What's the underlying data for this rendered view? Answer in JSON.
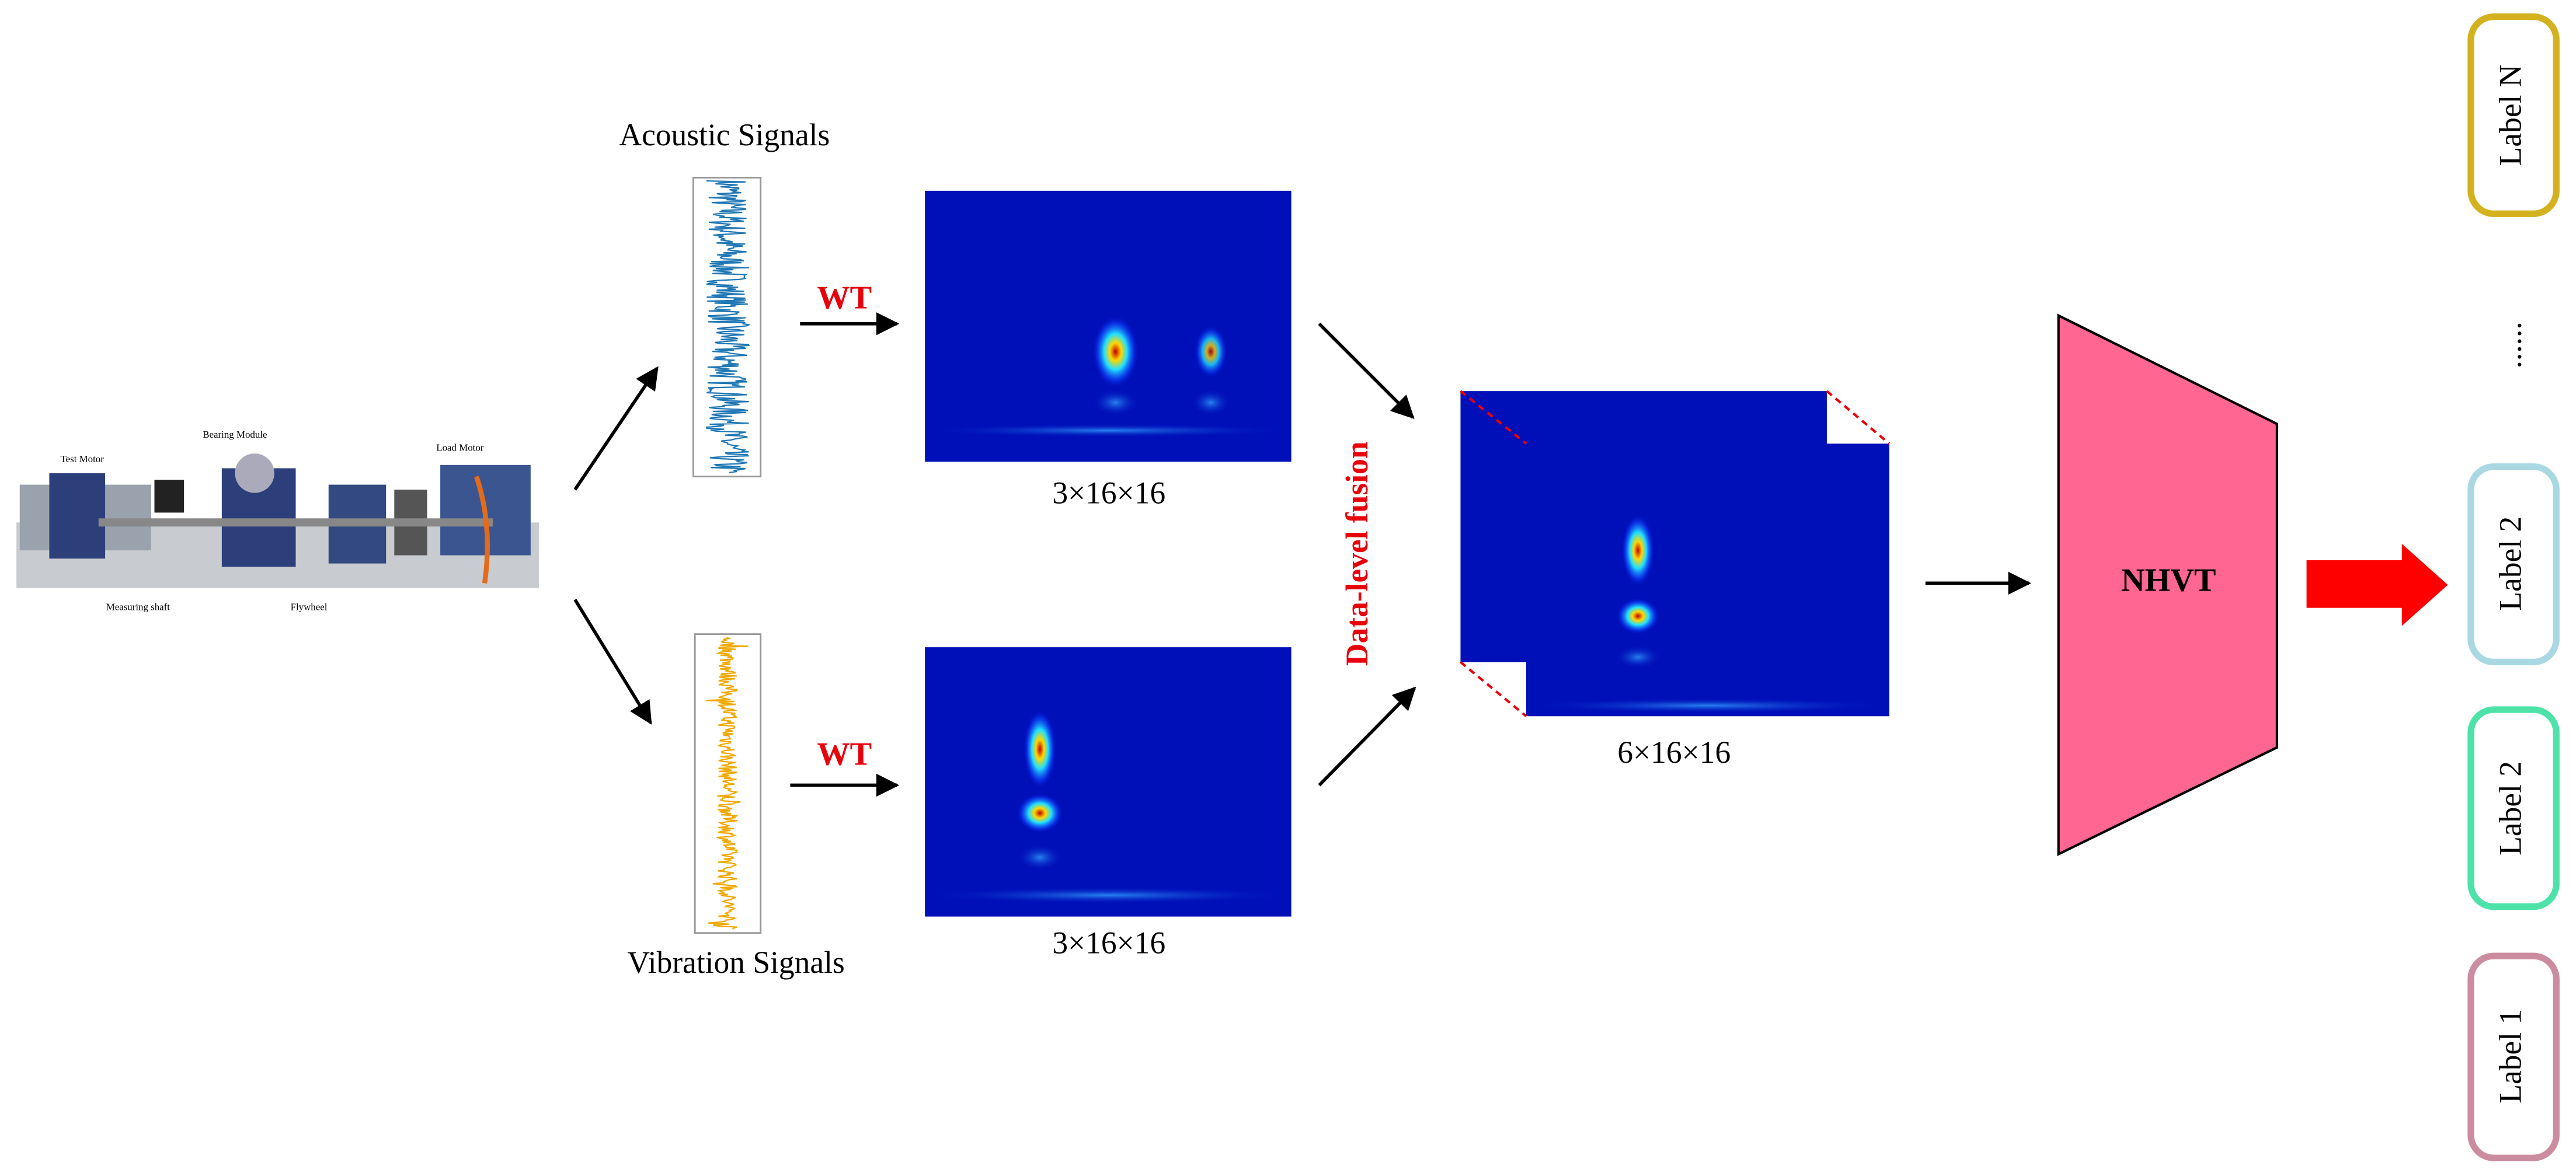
{
  "rig": {
    "labels": [
      "Test Motor",
      "Bearing Module",
      "Load Motor",
      "Measuring shaft",
      "Flywheel"
    ]
  },
  "signals": {
    "acoustic": "Acoustic Signals",
    "vibration": "Vibration Signals"
  },
  "transform": {
    "top": "WT",
    "bottom": "WT"
  },
  "shapes": {
    "top": "3×16×16",
    "bottom": "3×16×16",
    "fused": "6×16×16"
  },
  "fusion": "Data-level fusion",
  "model": "NHVT",
  "outputs": {
    "labels": [
      "Label N",
      "......",
      "Label 2",
      "Label 2",
      "Label 1"
    ]
  }
}
